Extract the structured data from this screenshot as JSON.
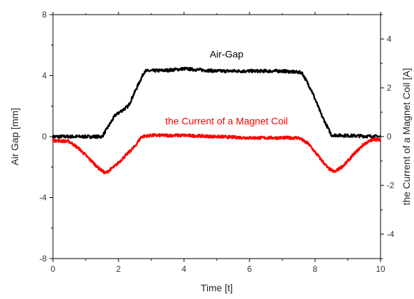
{
  "chart_data": {
    "type": "line",
    "xlabel": "Time [t]",
    "ylabel_left": "Air Gap [mm]",
    "ylabel_right": "the Current of a Magnet Coil [A]",
    "xlim": [
      0,
      10
    ],
    "ylim_left": [
      -8,
      8
    ],
    "ylim_right": [
      -5,
      5
    ],
    "x_ticks": [
      0,
      2,
      4,
      6,
      8,
      10
    ],
    "y_ticks_left": [
      -8,
      -4,
      0,
      4,
      8
    ],
    "y_ticks_right": [
      -4,
      -2,
      0,
      2,
      4
    ],
    "grid": false,
    "legend": "none",
    "series": [
      {
        "name": "Air-Gap",
        "axis": "left",
        "color": "#000000",
        "x": [
          0,
          1.5,
          1.9,
          2.3,
          2.6,
          2.8,
          3.5,
          4.0,
          5.0,
          6.0,
          7.0,
          7.6,
          7.9,
          8.2,
          8.5,
          10
        ],
        "y": [
          0,
          0,
          1.4,
          2.0,
          3.4,
          4.3,
          4.35,
          4.45,
          4.3,
          4.3,
          4.3,
          4.2,
          3.0,
          1.4,
          0.1,
          0
        ]
      },
      {
        "name": "the Current of a Magnet Coil",
        "axis": "right",
        "color": "#ff0000",
        "x": [
          0,
          0.5,
          0.8,
          1.1,
          1.4,
          1.6,
          1.9,
          2.2,
          2.5,
          2.7,
          3.0,
          4.0,
          5.0,
          6.0,
          7.0,
          7.5,
          7.8,
          8.1,
          8.4,
          8.6,
          8.9,
          9.2,
          9.5,
          9.8,
          10
        ],
        "y": [
          -0.15,
          -0.2,
          -0.5,
          -0.9,
          -1.3,
          -1.5,
          -1.2,
          -0.8,
          -0.4,
          0.0,
          0.05,
          0.05,
          0.0,
          -0.05,
          -0.05,
          -0.05,
          -0.3,
          -0.8,
          -1.3,
          -1.45,
          -1.15,
          -0.7,
          -0.3,
          -0.1,
          -0.15
        ]
      }
    ],
    "annotations": [
      {
        "text": "Air-Gap",
        "x": 5.3,
        "y_left": 5.2,
        "color": "#000000"
      },
      {
        "text": "the Current of a Magnet Coil",
        "x": 5.3,
        "y_left": 0.8,
        "color": "#ff0000"
      }
    ]
  }
}
